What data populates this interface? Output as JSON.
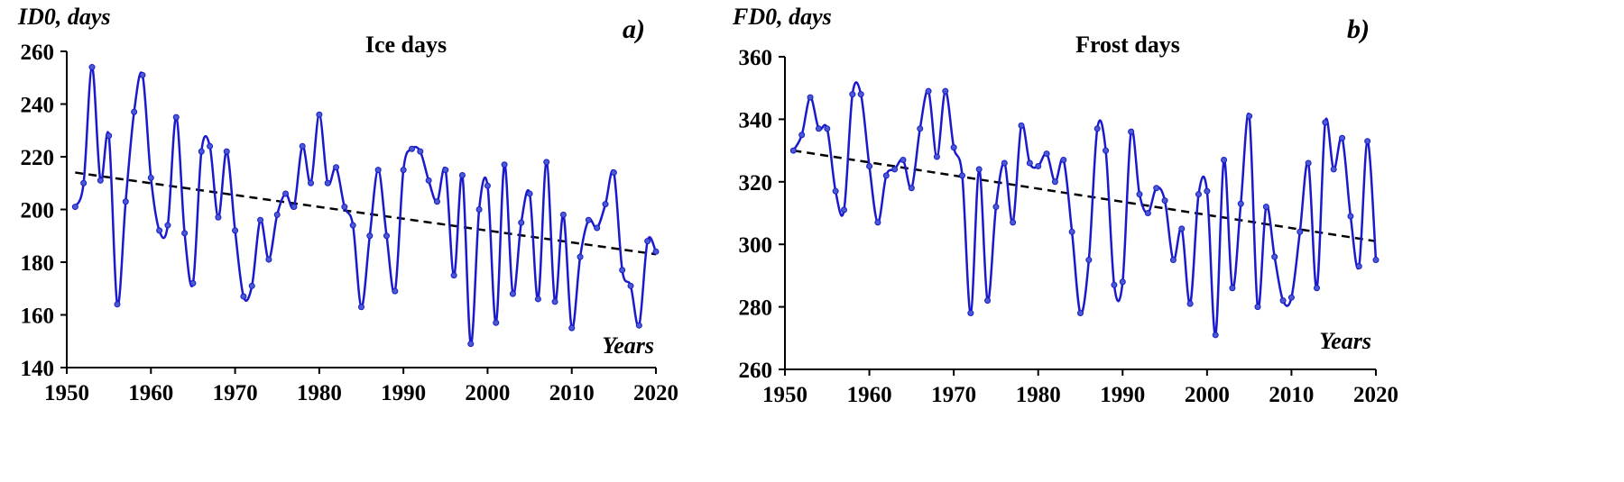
{
  "chart_data": [
    {
      "type": "line",
      "panel_label": "a)",
      "title": "Ice days",
      "ylabel": "ID0, days",
      "xlabel": "Years",
      "xlim": [
        1950,
        2020
      ],
      "ylim": [
        140,
        260
      ],
      "xticks": [
        1950,
        1960,
        1970,
        1980,
        1990,
        2000,
        2010,
        2020
      ],
      "yticks": [
        140,
        160,
        180,
        200,
        220,
        240,
        260
      ],
      "grid": false,
      "x_start": 1951,
      "series": [
        {
          "name": "ID0",
          "color": "#1a1acc",
          "values": [
            201,
            210,
            254,
            211,
            228,
            164,
            203,
            237,
            251,
            212,
            192,
            194,
            235,
            191,
            172,
            222,
            224,
            197,
            222,
            192,
            167,
            171,
            196,
            181,
            198,
            206,
            201,
            224,
            210,
            236,
            210,
            216,
            201,
            194,
            163,
            190,
            215,
            190,
            169,
            215,
            223,
            222,
            211,
            203,
            215,
            175,
            213,
            149,
            200,
            209,
            157,
            217,
            168,
            195,
            206,
            166,
            218,
            165,
            198,
            155,
            182,
            196,
            193,
            202,
            214,
            177,
            171,
            156,
            188,
            184
          ]
        },
        {
          "name": "trend",
          "color": "#000000",
          "style": "dashed",
          "x": [
            1951,
            2020
          ],
          "values": [
            214,
            183
          ]
        }
      ]
    },
    {
      "type": "line",
      "panel_label": "b)",
      "title": "Frost days",
      "ylabel": "FD0, days",
      "xlabel": "Years",
      "xlim": [
        1950,
        2020
      ],
      "ylim": [
        260,
        360
      ],
      "xticks": [
        1950,
        1960,
        1970,
        1980,
        1990,
        2000,
        2010,
        2020
      ],
      "yticks": [
        260,
        280,
        300,
        320,
        340,
        360
      ],
      "grid": false,
      "x_start": 1951,
      "series": [
        {
          "name": "FD0",
          "color": "#1a1acc",
          "values": [
            330,
            335,
            347,
            337,
            337,
            317,
            311,
            348,
            348,
            325,
            307,
            322,
            324,
            327,
            318,
            337,
            349,
            328,
            349,
            331,
            322,
            278,
            324,
            282,
            312,
            326,
            307,
            338,
            326,
            325,
            329,
            320,
            327,
            304,
            278,
            295,
            337,
            330,
            287,
            288,
            336,
            316,
            310,
            318,
            314,
            295,
            305,
            281,
            316,
            317,
            271,
            327,
            286,
            313,
            341,
            280,
            312,
            296,
            282,
            283,
            304,
            326,
            286,
            339,
            324,
            334,
            309,
            293,
            333,
            295
          ]
        },
        {
          "name": "trend",
          "color": "#000000",
          "style": "dashed",
          "x": [
            1951,
            2020
          ],
          "values": [
            330,
            301
          ]
        }
      ]
    }
  ]
}
